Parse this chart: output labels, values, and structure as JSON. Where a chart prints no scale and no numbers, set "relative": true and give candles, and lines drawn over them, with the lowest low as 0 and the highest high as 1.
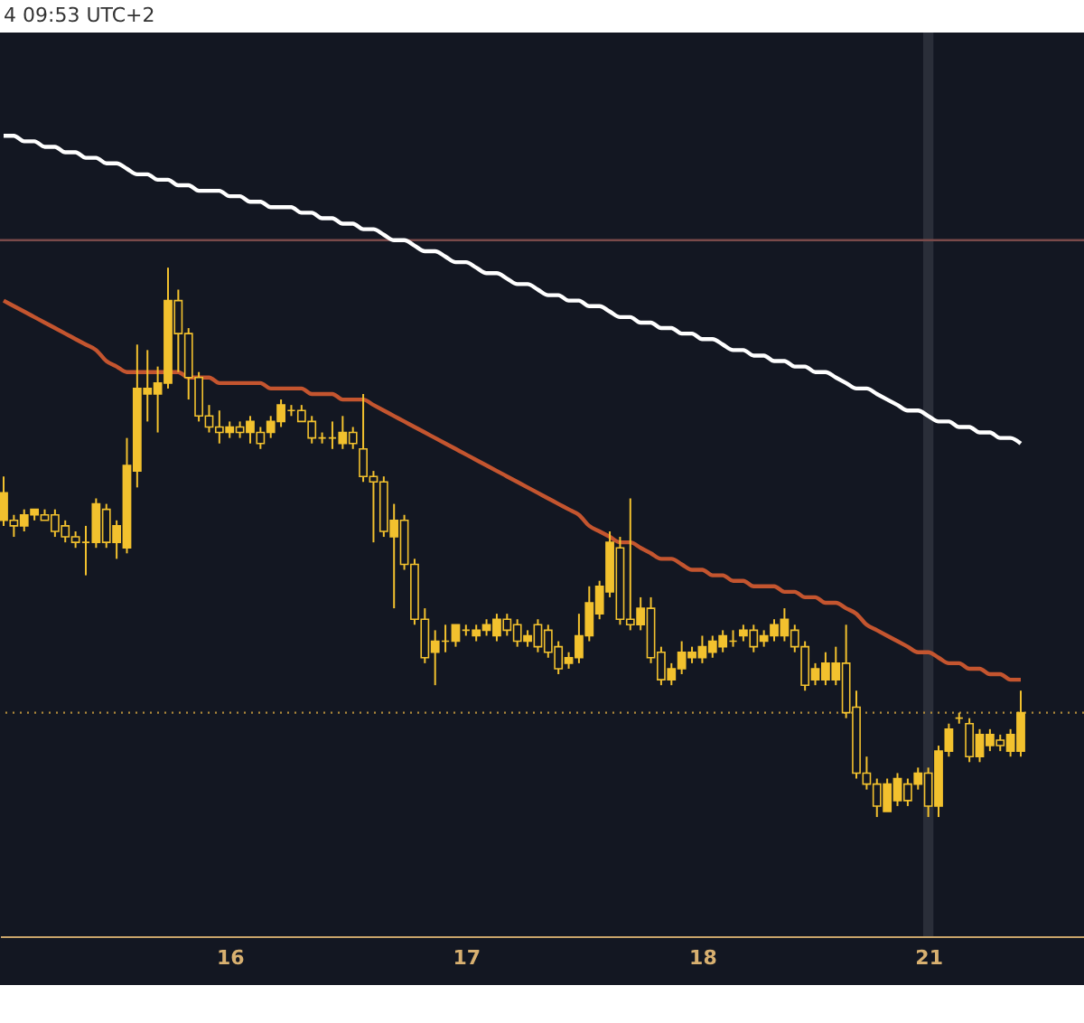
{
  "chart_data": {
    "type": "candlestick",
    "relative": true,
    "grid": false,
    "color": "#f2c12e",
    "annotations": [
      "4 09:53 UTC+2"
    ],
    "categories": [
      null,
      null,
      null,
      null,
      null,
      null,
      null,
      null,
      null,
      null,
      null,
      null,
      null,
      null,
      null,
      null,
      null,
      null,
      null,
      null,
      null,
      null,
      "16",
      null,
      null,
      null,
      null,
      null,
      null,
      null,
      null,
      null,
      null,
      null,
      null,
      null,
      null,
      null,
      null,
      null,
      null,
      null,
      null,
      null,
      null,
      "17",
      null,
      null,
      null,
      null,
      null,
      null,
      null,
      null,
      null,
      null,
      null,
      null,
      null,
      null,
      null,
      null,
      null,
      null,
      null,
      null,
      null,
      null,
      "18",
      null,
      null,
      null,
      null,
      null,
      null,
      null,
      null,
      null,
      null,
      null,
      null,
      null,
      null,
      null,
      null,
      null,
      null,
      null,
      null,
      null,
      "21",
      null,
      null,
      null,
      null,
      null,
      null,
      null,
      null,
      null
    ],
    "ohlc": [
      [
        0.54,
        0.62,
        0.53,
        0.59
      ],
      [
        0.54,
        0.55,
        0.51,
        0.53
      ],
      [
        0.53,
        0.56,
        0.52,
        0.55
      ],
      [
        0.55,
        0.56,
        0.54,
        0.56
      ],
      [
        0.55,
        0.56,
        0.54,
        0.54
      ],
      [
        0.55,
        0.56,
        0.51,
        0.52
      ],
      [
        0.53,
        0.54,
        0.5,
        0.51
      ],
      [
        0.51,
        0.52,
        0.49,
        0.5
      ],
      [
        0.5,
        0.53,
        0.44,
        0.5
      ],
      [
        0.5,
        0.58,
        0.49,
        0.57
      ],
      [
        0.56,
        0.57,
        0.49,
        0.5
      ],
      [
        0.5,
        0.54,
        0.47,
        0.53
      ],
      [
        0.49,
        0.69,
        0.48,
        0.64
      ],
      [
        0.63,
        0.86,
        0.6,
        0.78
      ],
      [
        0.77,
        0.85,
        0.72,
        0.78
      ],
      [
        0.77,
        0.82,
        0.7,
        0.79
      ],
      [
        0.79,
        1.0,
        0.78,
        0.94
      ],
      [
        0.94,
        0.96,
        0.81,
        0.88
      ],
      [
        0.88,
        0.89,
        0.76,
        0.8
      ],
      [
        0.8,
        0.81,
        0.72,
        0.73
      ],
      [
        0.73,
        0.75,
        0.7,
        0.71
      ],
      [
        0.71,
        0.74,
        0.68,
        0.7
      ],
      [
        0.7,
        0.72,
        0.69,
        0.71
      ],
      [
        0.71,
        0.72,
        0.69,
        0.7
      ],
      [
        0.7,
        0.73,
        0.68,
        0.72
      ],
      [
        0.7,
        0.71,
        0.67,
        0.68
      ],
      [
        0.7,
        0.73,
        0.69,
        0.72
      ],
      [
        0.72,
        0.76,
        0.71,
        0.75
      ],
      [
        0.74,
        0.75,
        0.73,
        0.74
      ],
      [
        0.74,
        0.75,
        0.72,
        0.72
      ],
      [
        0.72,
        0.73,
        0.68,
        0.69
      ],
      [
        0.69,
        0.7,
        0.68,
        0.69
      ],
      [
        0.69,
        0.72,
        0.67,
        0.69
      ],
      [
        0.68,
        0.73,
        0.67,
        0.7
      ],
      [
        0.7,
        0.71,
        0.67,
        0.68
      ],
      [
        0.67,
        0.77,
        0.61,
        0.62
      ],
      [
        0.62,
        0.63,
        0.5,
        0.61
      ],
      [
        0.61,
        0.62,
        0.51,
        0.52
      ],
      [
        0.51,
        0.57,
        0.38,
        0.54
      ],
      [
        0.54,
        0.55,
        0.45,
        0.46
      ],
      [
        0.46,
        0.47,
        0.35,
        0.36
      ],
      [
        0.36,
        0.38,
        0.28,
        0.29
      ],
      [
        0.3,
        0.34,
        0.24,
        0.32
      ],
      [
        0.32,
        0.35,
        0.3,
        0.32
      ],
      [
        0.32,
        0.35,
        0.31,
        0.35
      ],
      [
        0.34,
        0.35,
        0.33,
        0.34
      ],
      [
        0.33,
        0.35,
        0.32,
        0.34
      ],
      [
        0.34,
        0.36,
        0.33,
        0.35
      ],
      [
        0.33,
        0.37,
        0.32,
        0.36
      ],
      [
        0.36,
        0.37,
        0.33,
        0.34
      ],
      [
        0.35,
        0.36,
        0.31,
        0.32
      ],
      [
        0.32,
        0.34,
        0.31,
        0.33
      ],
      [
        0.35,
        0.36,
        0.3,
        0.31
      ],
      [
        0.34,
        0.35,
        0.29,
        0.3
      ],
      [
        0.31,
        0.32,
        0.26,
        0.27
      ],
      [
        0.28,
        0.3,
        0.27,
        0.29
      ],
      [
        0.29,
        0.37,
        0.28,
        0.33
      ],
      [
        0.33,
        0.42,
        0.32,
        0.39
      ],
      [
        0.37,
        0.43,
        0.36,
        0.42
      ],
      [
        0.41,
        0.52,
        0.4,
        0.5
      ],
      [
        0.49,
        0.51,
        0.35,
        0.36
      ],
      [
        0.36,
        0.58,
        0.34,
        0.35
      ],
      [
        0.35,
        0.4,
        0.34,
        0.38
      ],
      [
        0.38,
        0.4,
        0.28,
        0.29
      ],
      [
        0.3,
        0.31,
        0.24,
        0.25
      ],
      [
        0.25,
        0.28,
        0.24,
        0.27
      ],
      [
        0.27,
        0.32,
        0.26,
        0.3
      ],
      [
        0.29,
        0.31,
        0.28,
        0.3
      ],
      [
        0.29,
        0.33,
        0.28,
        0.31
      ],
      [
        0.3,
        0.33,
        0.29,
        0.32
      ],
      [
        0.31,
        0.34,
        0.3,
        0.33
      ],
      [
        0.32,
        0.34,
        0.31,
        0.32
      ],
      [
        0.33,
        0.35,
        0.32,
        0.34
      ],
      [
        0.34,
        0.35,
        0.3,
        0.31
      ],
      [
        0.32,
        0.34,
        0.31,
        0.33
      ],
      [
        0.33,
        0.36,
        0.32,
        0.35
      ],
      [
        0.33,
        0.38,
        0.32,
        0.36
      ],
      [
        0.34,
        0.35,
        0.3,
        0.31
      ],
      [
        0.31,
        0.32,
        0.23,
        0.24
      ],
      [
        0.25,
        0.28,
        0.24,
        0.27
      ],
      [
        0.25,
        0.3,
        0.24,
        0.28
      ],
      [
        0.25,
        0.31,
        0.24,
        0.28
      ],
      [
        0.28,
        0.35,
        0.18,
        0.19
      ],
      [
        0.2,
        0.23,
        0.07,
        0.08
      ],
      [
        0.08,
        0.11,
        0.05,
        0.06
      ],
      [
        0.06,
        0.07,
        0.0,
        0.02
      ],
      [
        0.01,
        0.07,
        0.01,
        0.06
      ],
      [
        0.03,
        0.08,
        0.02,
        0.07
      ],
      [
        0.06,
        0.07,
        0.02,
        0.03
      ],
      [
        0.06,
        0.09,
        0.05,
        0.08
      ],
      [
        0.08,
        0.09,
        0.0,
        0.02
      ],
      [
        0.02,
        0.13,
        0.0,
        0.12
      ],
      [
        0.12,
        0.17,
        0.11,
        0.16
      ],
      [
        0.18,
        0.19,
        0.17,
        0.18
      ],
      [
        0.17,
        0.18,
        0.1,
        0.11
      ],
      [
        0.11,
        0.16,
        0.1,
        0.15
      ],
      [
        0.13,
        0.16,
        0.12,
        0.15
      ],
      [
        0.14,
        0.15,
        0.12,
        0.13
      ],
      [
        0.12,
        0.16,
        0.11,
        0.15
      ],
      [
        0.12,
        0.23,
        0.11,
        0.19
      ]
    ],
    "series": [
      {
        "type": "line",
        "color": "#ffffff",
        "values": [
          1.24,
          1.24,
          1.23,
          1.23,
          1.22,
          1.22,
          1.21,
          1.21,
          1.2,
          1.2,
          1.19,
          1.19,
          1.18,
          1.17,
          1.17,
          1.16,
          1.16,
          1.15,
          1.15,
          1.14,
          1.14,
          1.14,
          1.13,
          1.13,
          1.12,
          1.12,
          1.11,
          1.11,
          1.11,
          1.1,
          1.1,
          1.09,
          1.09,
          1.08,
          1.08,
          1.07,
          1.07,
          1.06,
          1.05,
          1.05,
          1.04,
          1.03,
          1.03,
          1.02,
          1.01,
          1.01,
          1.0,
          0.99,
          0.99,
          0.98,
          0.97,
          0.97,
          0.96,
          0.95,
          0.95,
          0.94,
          0.94,
          0.93,
          0.93,
          0.92,
          0.91,
          0.91,
          0.9,
          0.9,
          0.89,
          0.89,
          0.88,
          0.88,
          0.87,
          0.87,
          0.86,
          0.85,
          0.85,
          0.84,
          0.84,
          0.83,
          0.83,
          0.82,
          0.82,
          0.81,
          0.81,
          0.8,
          0.79,
          0.78,
          0.78,
          0.77,
          0.76,
          0.75,
          0.74,
          0.74,
          0.73,
          0.72,
          0.72,
          0.71,
          0.71,
          0.7,
          0.7,
          0.69,
          0.69,
          0.68
        ]
      },
      {
        "type": "line",
        "color": "#c4552f",
        "values": [
          0.94,
          0.93,
          0.92,
          0.91,
          0.9,
          0.89,
          0.88,
          0.87,
          0.86,
          0.85,
          0.83,
          0.82,
          0.81,
          0.81,
          0.81,
          0.81,
          0.81,
          0.81,
          0.8,
          0.8,
          0.8,
          0.79,
          0.79,
          0.79,
          0.79,
          0.79,
          0.78,
          0.78,
          0.78,
          0.78,
          0.77,
          0.77,
          0.77,
          0.76,
          0.76,
          0.76,
          0.75,
          0.74,
          0.73,
          0.72,
          0.71,
          0.7,
          0.69,
          0.68,
          0.67,
          0.66,
          0.65,
          0.64,
          0.63,
          0.62,
          0.61,
          0.6,
          0.59,
          0.58,
          0.57,
          0.56,
          0.55,
          0.53,
          0.52,
          0.51,
          0.5,
          0.5,
          0.49,
          0.48,
          0.47,
          0.47,
          0.46,
          0.45,
          0.45,
          0.44,
          0.44,
          0.43,
          0.43,
          0.42,
          0.42,
          0.42,
          0.41,
          0.41,
          0.4,
          0.4,
          0.39,
          0.39,
          0.38,
          0.37,
          0.35,
          0.34,
          0.33,
          0.32,
          0.31,
          0.3,
          0.3,
          0.29,
          0.28,
          0.28,
          0.27,
          0.27,
          0.26,
          0.26,
          0.25,
          0.25
        ]
      }
    ],
    "ref_lines": [
      {
        "axis": "y",
        "value": 1.05,
        "color": "#7a4a4a",
        "line_style": "solid"
      },
      {
        "axis": "y",
        "value": 0.19,
        "color": "#b08a3a",
        "line_style": "dotted"
      }
    ],
    "bands": [
      {
        "axis": "x",
        "from": "21",
        "to": "21",
        "color": "#2a2e39"
      }
    ]
  }
}
